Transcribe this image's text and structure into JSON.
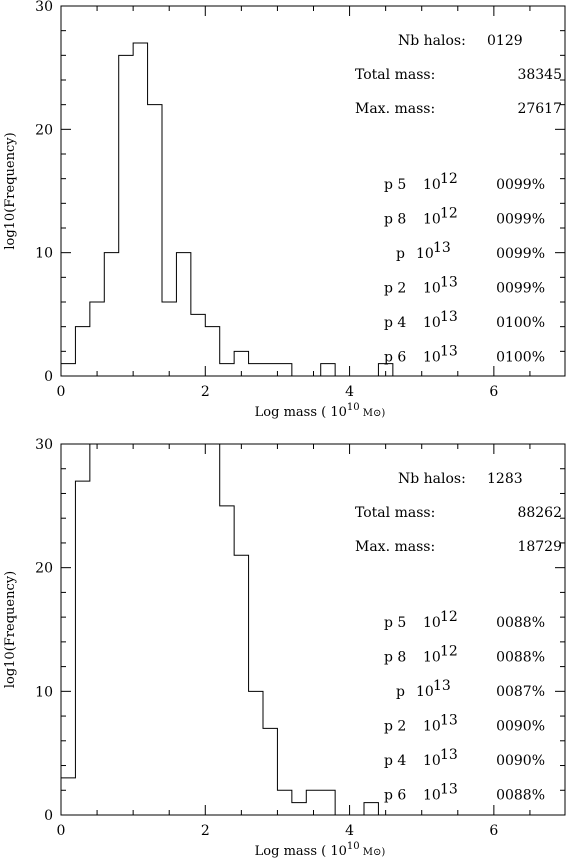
{
  "chart_data": [
    {
      "type": "histogram",
      "xlabel": "Log mass ( 10^10 M⊙)",
      "ylabel": "log10(Frequency)",
      "xlim": [
        0,
        7
      ],
      "ylim": [
        0,
        30
      ],
      "xticks": [
        0,
        2,
        4,
        6
      ],
      "yticks": [
        0,
        10,
        20,
        30
      ],
      "bin_width": 0.2,
      "bins_start": [
        0.0,
        0.2,
        0.4,
        0.6,
        0.8,
        1.0,
        1.2,
        1.4,
        1.6,
        1.8,
        2.0,
        2.2,
        2.4,
        2.6,
        2.8,
        3.0,
        3.2,
        3.4,
        3.6,
        3.8,
        4.0,
        4.2,
        4.4,
        4.6,
        4.8,
        5.0
      ],
      "values": [
        1,
        4,
        6,
        10,
        26,
        27,
        22,
        6,
        10,
        5,
        4,
        1,
        2,
        1,
        1,
        1,
        0,
        0,
        1,
        0,
        0,
        0,
        1,
        0,
        0,
        0
      ],
      "stats": [
        {
          "label": "Nb halos:",
          "value": "0129"
        },
        {
          "label": "Total mass:",
          "value": "38345"
        },
        {
          "label": "Max. mass:",
          "value": "27617"
        }
      ],
      "thresholds": [
        {
          "label": "p 5",
          "base": "10",
          "exp": "12",
          "value": "0099%"
        },
        {
          "label": "p 8",
          "base": "10",
          "exp": "12",
          "value": "0099%"
        },
        {
          "label": "p",
          "base": "10",
          "exp": "13",
          "value": "0099%"
        },
        {
          "label": "p 2",
          "base": "10",
          "exp": "13",
          "value": "0099%"
        },
        {
          "label": "p 4",
          "base": "10",
          "exp": "13",
          "value": "0100%"
        },
        {
          "label": "p 6",
          "base": "10",
          "exp": "13",
          "value": "0100%"
        }
      ]
    },
    {
      "type": "histogram",
      "xlabel": "Log mass ( 10^10 M⊙)",
      "ylabel": "log10(Frequency)",
      "xlim": [
        0,
        7
      ],
      "ylim": [
        0,
        30
      ],
      "xticks": [
        0,
        2,
        4,
        6
      ],
      "yticks": [
        0,
        10,
        20,
        30
      ],
      "bin_width": 0.2,
      "bins_start": [
        0.0,
        0.2,
        0.4,
        0.6,
        0.8,
        1.0,
        1.2,
        1.4,
        1.6,
        1.8,
        2.0,
        2.2,
        2.4,
        2.6,
        2.8,
        3.0,
        3.2,
        3.4,
        3.6,
        3.8,
        4.0,
        4.2,
        4.4,
        4.6,
        4.8,
        5.0
      ],
      "values": [
        3,
        27,
        30,
        30,
        30,
        30,
        30,
        30,
        30,
        30,
        30,
        25,
        21,
        10,
        7,
        2,
        1,
        2,
        2,
        0,
        0,
        1,
        0,
        0,
        0,
        0
      ],
      "values_note": "bins 0.4–2.0 exceed the 30 axis maximum and are clipped at the top edge",
      "stats": [
        {
          "label": "Nb halos:",
          "value": "1283"
        },
        {
          "label": "Total mass:",
          "value": "88262"
        },
        {
          "label": "Max. mass:",
          "value": "18729"
        }
      ],
      "thresholds": [
        {
          "label": "p 5",
          "base": "10",
          "exp": "12",
          "value": "0088%"
        },
        {
          "label": "p 8",
          "base": "10",
          "exp": "12",
          "value": "0088%"
        },
        {
          "label": "p",
          "base": "10",
          "exp": "13",
          "value": "0087%"
        },
        {
          "label": "p 2",
          "base": "10",
          "exp": "13",
          "value": "0090%"
        },
        {
          "label": "p 4",
          "base": "10",
          "exp": "13",
          "value": "0090%"
        },
        {
          "label": "p 6",
          "base": "10",
          "exp": "13",
          "value": "0088%"
        }
      ]
    }
  ]
}
